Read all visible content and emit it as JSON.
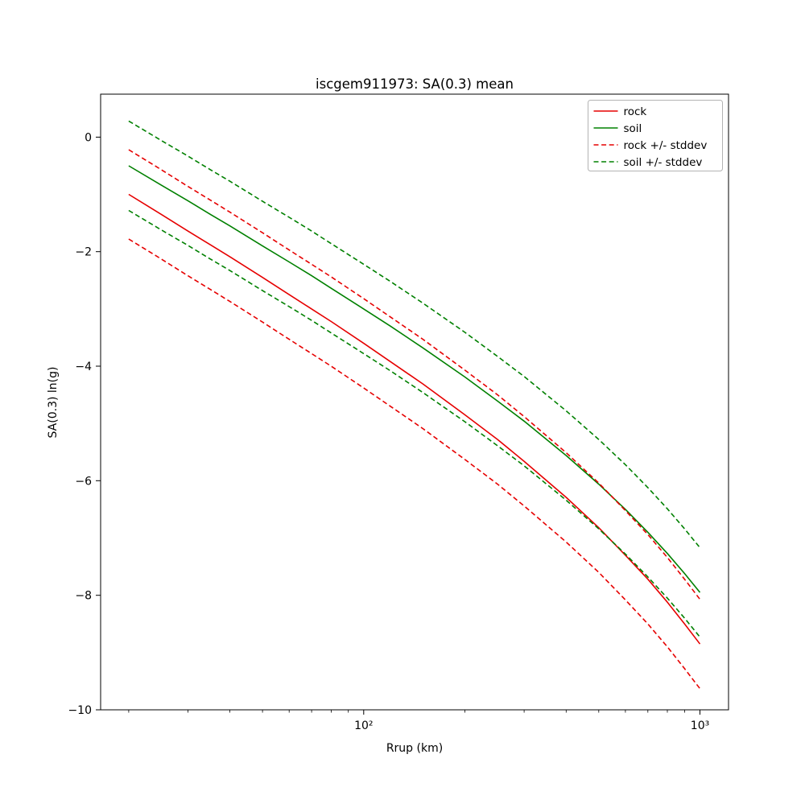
{
  "page": {
    "background_color": "#ffffff"
  },
  "chart_data": {
    "type": "line",
    "title": "iscgem911973: SA(0.3) mean",
    "xlabel": "Rrup (km)",
    "ylabel": "SA(0.3) ln(g)",
    "xscale": "log",
    "grid": false,
    "xlim": [
      16.5,
      1216
    ],
    "ylim": [
      -10,
      0.75
    ],
    "x_major_ticks": [
      {
        "value": 100,
        "label": "10²"
      },
      {
        "value": 1000,
        "label": "10³"
      }
    ],
    "x_minor_ticks": [
      20,
      30,
      40,
      50,
      60,
      70,
      80,
      90,
      200,
      300,
      400,
      500,
      600,
      700,
      800,
      900
    ],
    "y_ticks": [
      {
        "value": 0,
        "label": "0"
      },
      {
        "value": -2,
        "label": "−2"
      },
      {
        "value": -4,
        "label": "−4"
      },
      {
        "value": -6,
        "label": "−6"
      },
      {
        "value": -8,
        "label": "−8"
      },
      {
        "value": -10,
        "label": "−10"
      }
    ],
    "stddev": 0.78,
    "colors": {
      "rock": "#e60000",
      "soil": "#008000"
    },
    "x": [
      20,
      25,
      30,
      35,
      40,
      50,
      60,
      70,
      80,
      100,
      120,
      150,
      200,
      250,
      300,
      400,
      500,
      600,
      700,
      800,
      900,
      1000
    ],
    "series": [
      {
        "name": "rock",
        "color": "#e60000",
        "style": "solid",
        "values": [
          -1.0,
          -1.35,
          -1.64,
          -1.88,
          -2.09,
          -2.45,
          -2.75,
          -3.0,
          -3.22,
          -3.6,
          -3.92,
          -4.31,
          -4.85,
          -5.28,
          -5.66,
          -6.29,
          -6.82,
          -7.3,
          -7.72,
          -8.12,
          -8.5,
          -8.85
        ]
      },
      {
        "name": "soil",
        "color": "#008000",
        "style": "solid",
        "values": [
          -0.5,
          -0.84,
          -1.11,
          -1.35,
          -1.55,
          -1.9,
          -2.18,
          -2.42,
          -2.64,
          -3.0,
          -3.3,
          -3.68,
          -4.19,
          -4.61,
          -4.96,
          -5.56,
          -6.06,
          -6.5,
          -6.9,
          -7.27,
          -7.62,
          -7.95
        ]
      },
      {
        "name": "rock-plus-stddev",
        "color": "#e60000",
        "style": "dashed",
        "values": [
          -0.22,
          -0.57,
          -0.86,
          -1.1,
          -1.31,
          -1.67,
          -1.97,
          -2.22,
          -2.44,
          -2.82,
          -3.14,
          -3.53,
          -4.07,
          -4.5,
          -4.88,
          -5.51,
          -6.04,
          -6.52,
          -6.94,
          -7.34,
          -7.72,
          -8.07
        ]
      },
      {
        "name": "rock-minus-stddev",
        "color": "#e60000",
        "style": "dashed",
        "values": [
          -1.78,
          -2.13,
          -2.42,
          -2.66,
          -2.87,
          -3.23,
          -3.53,
          -3.78,
          -4.0,
          -4.38,
          -4.7,
          -5.09,
          -5.63,
          -6.06,
          -6.44,
          -7.07,
          -7.6,
          -8.08,
          -8.5,
          -8.9,
          -9.28,
          -9.63
        ]
      },
      {
        "name": "soil-plus-stddev",
        "color": "#008000",
        "style": "dashed",
        "values": [
          0.28,
          -0.06,
          -0.33,
          -0.57,
          -0.77,
          -1.12,
          -1.4,
          -1.64,
          -1.86,
          -2.22,
          -2.52,
          -2.9,
          -3.41,
          -3.83,
          -4.18,
          -4.78,
          -5.28,
          -5.72,
          -6.12,
          -6.49,
          -6.84,
          -7.17
        ]
      },
      {
        "name": "soil-minus-stddev",
        "color": "#008000",
        "style": "dashed",
        "values": [
          -1.28,
          -1.62,
          -1.89,
          -2.13,
          -2.33,
          -2.68,
          -2.96,
          -3.2,
          -3.42,
          -3.78,
          -4.08,
          -4.46,
          -4.97,
          -5.39,
          -5.74,
          -6.34,
          -6.84,
          -7.28,
          -7.68,
          -8.05,
          -8.4,
          -8.73
        ]
      }
    ],
    "legend": {
      "position": "upper right",
      "entries": [
        {
          "label": "rock",
          "color": "#e60000",
          "style": "solid"
        },
        {
          "label": "soil",
          "color": "#008000",
          "style": "solid"
        },
        {
          "label": "rock +/- stddev",
          "color": "#e60000",
          "style": "dashed"
        },
        {
          "label": "soil +/- stddev",
          "color": "#008000",
          "style": "dashed"
        }
      ]
    }
  }
}
